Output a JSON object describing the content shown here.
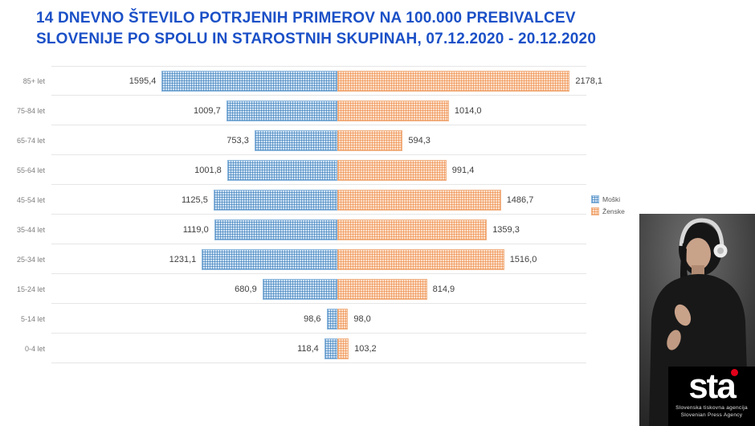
{
  "title": {
    "line1": "14 DNEVNO ŠTEVILO POTRJENIH PRIMEROV NA 100.000 PREBIVALCEV",
    "line2": "SLOVENIJE PO SPOLU IN STAROSTNIH SKUPINAH, 07.12.2020 - 20.12.2020"
  },
  "chart_data": {
    "type": "bar",
    "variant": "horizontal-diverging",
    "title": "14 dnevno število potrjenih primerov na 100.000 prebivalcev Slovenije po spolu in starostnih skupinah, 07.12.2020 - 20.12.2020",
    "categories": [
      "85+ let",
      "75-84 let",
      "65-74 let",
      "55-64 let",
      "45-54 let",
      "35-44 let",
      "25-34 let",
      "15-24 let",
      "5-14 let",
      "0-4 let"
    ],
    "series": [
      {
        "name": "Moški",
        "color": "#9dc3e6",
        "values": [
          1595.4,
          1009.7,
          753.3,
          1001.8,
          1125.5,
          1119.0,
          1231.1,
          680.9,
          98.6,
          118.4
        ],
        "labels": [
          "1595,4",
          "1009,7",
          "753,3",
          "1001,8",
          "1125,5",
          "1119,0",
          "1231,1",
          "680,9",
          "98,6",
          "118,4"
        ]
      },
      {
        "name": "Ženske",
        "color": "#f4b183",
        "values": [
          2178.1,
          1014.0,
          594.3,
          991.4,
          1486.7,
          1359.3,
          1516.0,
          814.9,
          98.0,
          103.2
        ],
        "labels": [
          "2178,1",
          "1014,0",
          "594,3",
          "991,4",
          "1486,7",
          "1359,3",
          "1516,0",
          "814,9",
          "98,0",
          "103,2"
        ]
      }
    ],
    "xlim": [
      0,
      2300
    ],
    "grid": "horizontal-row-separators",
    "legend_position": "right"
  },
  "legend": {
    "items": [
      {
        "label": "Moški",
        "color": "#9dc3e6"
      },
      {
        "label": "Ženske",
        "color": "#f4b183"
      }
    ]
  },
  "branding": {
    "logo_text": "sta",
    "tagline_line1": "Slovenska tiskovna agencija",
    "tagline_line2": "Slovenian Press Agency",
    "dot_color": "#e2001a"
  }
}
